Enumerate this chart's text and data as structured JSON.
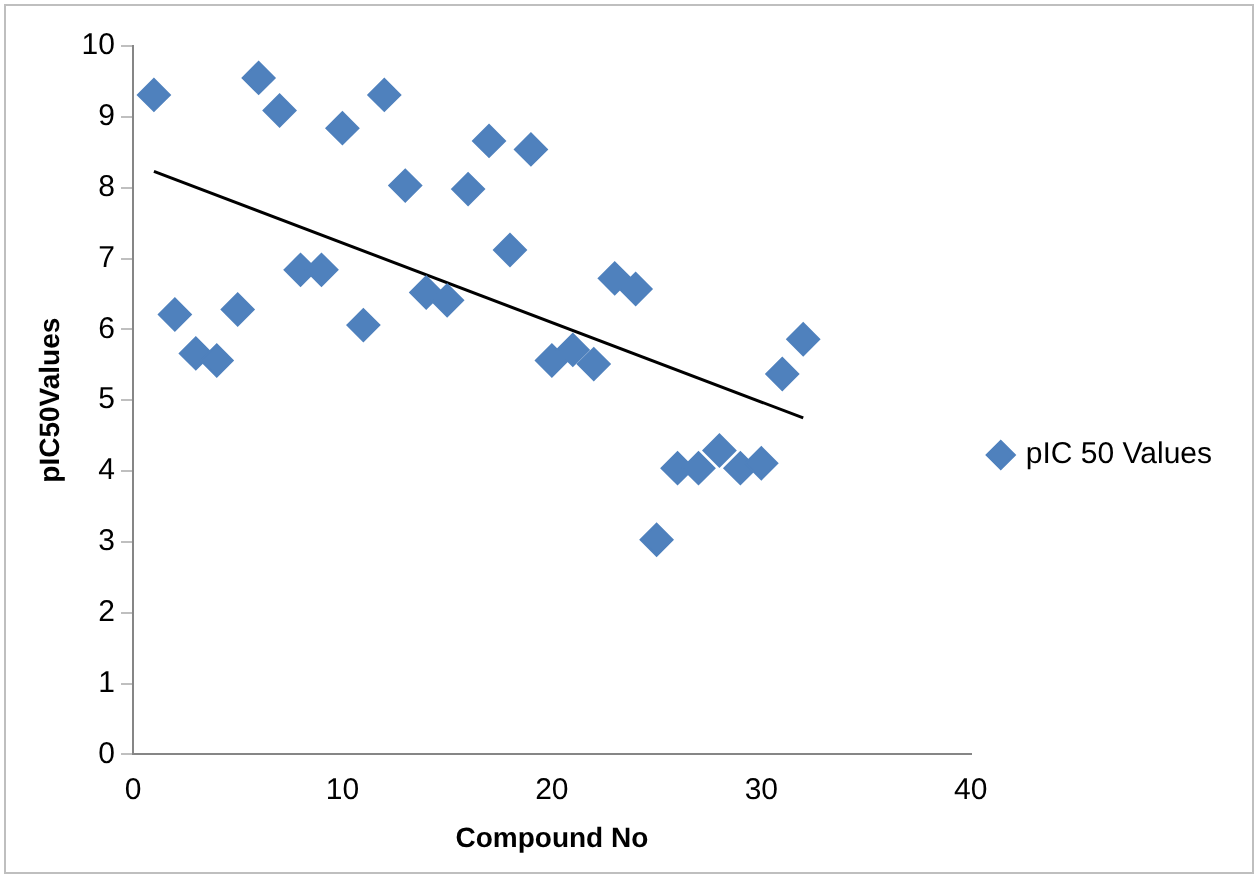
{
  "chart_data": {
    "type": "scatter",
    "xlabel": "Compound No",
    "ylabel": "pIC50Values",
    "xlim": [
      0,
      40
    ],
    "xticks": [
      0,
      10,
      20,
      30,
      40
    ],
    "ylim": [
      0,
      10
    ],
    "yticks": [
      0,
      1,
      2,
      3,
      4,
      5,
      6,
      7,
      8,
      9,
      10
    ],
    "grid": false,
    "legend": "right",
    "marker": "diamond",
    "series": [
      {
        "name": "pIC 50 Values",
        "color": "#4f81bd",
        "x": [
          1,
          2,
          3,
          4,
          5,
          6,
          7,
          8,
          9,
          10,
          11,
          12,
          13,
          14,
          15,
          16,
          17,
          18,
          19,
          20,
          21,
          22,
          23,
          24,
          25,
          26,
          27,
          28,
          29,
          30,
          31,
          32
        ],
        "values": [
          9.31,
          6.21,
          5.66,
          5.56,
          6.28,
          9.55,
          9.09,
          6.84,
          6.84,
          8.84,
          6.06,
          9.31,
          8.03,
          6.52,
          6.41,
          7.98,
          8.66,
          7.12,
          8.54,
          5.56,
          5.71,
          5.51,
          6.72,
          6.57,
          3.03,
          4.04,
          4.04,
          4.29,
          4.04,
          4.11,
          5.37,
          5.86
        ]
      },
      {
        "type": "line",
        "color": "#000000",
        "marker": "none",
        "x": [
          1,
          32
        ],
        "values": [
          8.23,
          4.75
        ]
      }
    ]
  }
}
